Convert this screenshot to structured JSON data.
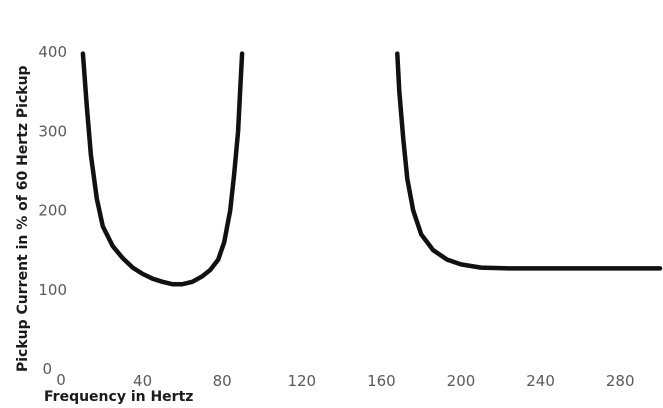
{
  "chart_data": {
    "type": "line",
    "title": "",
    "xlabel": "Frequency in Hertz",
    "ylabel": "Pickup Current in % of 60 Hertz Pickup",
    "xlim": [
      0,
      300
    ],
    "ylim": [
      0,
      400
    ],
    "x_ticks": [
      0,
      40,
      80,
      120,
      160,
      200,
      240,
      280
    ],
    "y_ticks": [
      0,
      100,
      200,
      300,
      400
    ],
    "grid": false,
    "legend": "none",
    "series": [
      {
        "color": "#111111",
        "points": [
          [
            10,
            398
          ],
          [
            12,
            330
          ],
          [
            14,
            270
          ],
          [
            17,
            215
          ],
          [
            20,
            180
          ],
          [
            25,
            155
          ],
          [
            30,
            140
          ],
          [
            35,
            128
          ],
          [
            40,
            120
          ],
          [
            45,
            114
          ],
          [
            50,
            110
          ],
          [
            55,
            107
          ],
          [
            60,
            107
          ],
          [
            65,
            110
          ],
          [
            70,
            117
          ],
          [
            74,
            125
          ],
          [
            78,
            138
          ],
          [
            81,
            160
          ],
          [
            84,
            200
          ],
          [
            86,
            245
          ],
          [
            88,
            300
          ],
          [
            89,
            350
          ],
          [
            90,
            398
          ]
        ]
      },
      {
        "color": "#111111",
        "points": [
          [
            168,
            398
          ],
          [
            169,
            350
          ],
          [
            171,
            290
          ],
          [
            173,
            240
          ],
          [
            176,
            200
          ],
          [
            180,
            170
          ],
          [
            186,
            150
          ],
          [
            193,
            138
          ],
          [
            200,
            132
          ],
          [
            210,
            128
          ],
          [
            225,
            127
          ],
          [
            240,
            127
          ],
          [
            270,
            127
          ],
          [
            300,
            127
          ]
        ]
      }
    ]
  }
}
